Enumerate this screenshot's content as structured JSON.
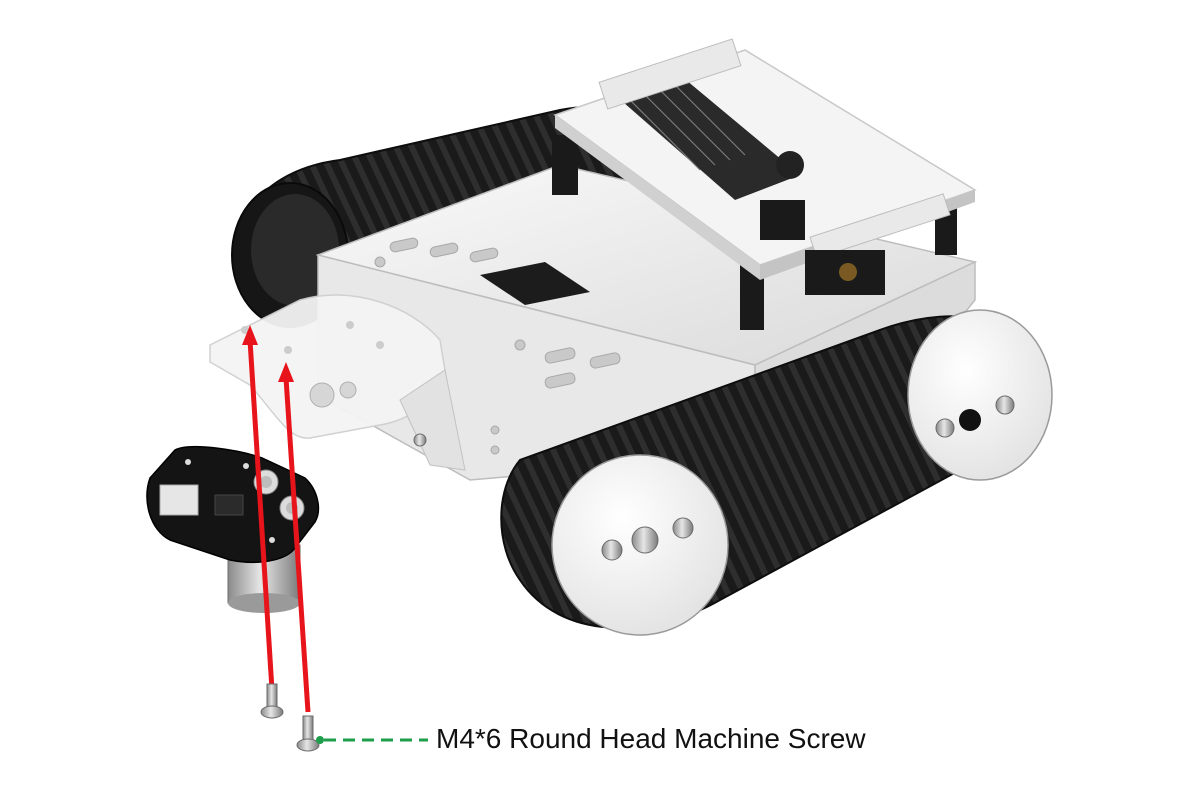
{
  "callout": {
    "label": "M4*6 Round Head Machine Screw",
    "leader_color": "#1e9e4a"
  },
  "colors": {
    "arrow": "#e8141c",
    "plate": "#f2f2f2",
    "track": "#1d1d1d",
    "pcb": "#111111",
    "wheel_face": "#f3f3f3",
    "screw": "#b9b9b9"
  },
  "icons": [
    "up-arrow-icon",
    "screw-icon"
  ]
}
